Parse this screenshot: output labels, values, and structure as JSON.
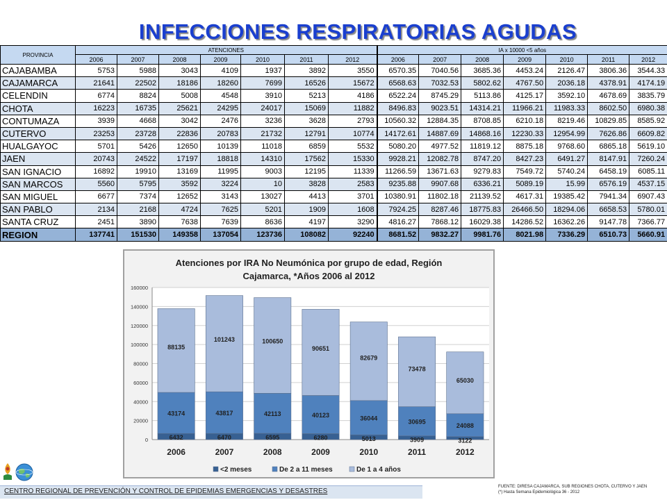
{
  "title": "INFECCIONES RESPIRATORIAS AGUDAS",
  "table": {
    "provincia_header": "PROVINCIA",
    "atenciones_header": "ATENCIONES",
    "ia_header": "IA x 10000 <5 años",
    "years": [
      "2006",
      "2007",
      "2008",
      "2009",
      "2010",
      "2011",
      "2012"
    ],
    "rows": [
      {
        "name": "CAJABAMBA",
        "aten": [
          "5753",
          "5988",
          "3043",
          "4109",
          "1937",
          "3892",
          "3550"
        ],
        "ia": [
          "6570.35",
          "7040.56",
          "3685.36",
          "4453.24",
          "2126.47",
          "3806.36",
          "3544.33"
        ]
      },
      {
        "name": "CAJAMARCA",
        "aten": [
          "21641",
          "22502",
          "18186",
          "18260",
          "7699",
          "16526",
          "15672"
        ],
        "ia": [
          "6568.63",
          "7032.53",
          "5802.62",
          "4767.50",
          "2036.18",
          "4378.91",
          "4174.19"
        ]
      },
      {
        "name": "CELENDIN",
        "aten": [
          "6774",
          "8824",
          "5008",
          "4548",
          "3910",
          "5213",
          "4186"
        ],
        "ia": [
          "6522.24",
          "8745.29",
          "5113.86",
          "4125.17",
          "3592.10",
          "4678.69",
          "3835.79"
        ]
      },
      {
        "name": "CHOTA",
        "aten": [
          "16223",
          "16735",
          "25621",
          "24295",
          "24017",
          "15069",
          "11882"
        ],
        "ia": [
          "8496.83",
          "9023.51",
          "14314.21",
          "11966.21",
          "11983.33",
          "8602.50",
          "6980.38"
        ]
      },
      {
        "name": "CONTUMAZA",
        "aten": [
          "3939",
          "4668",
          "3042",
          "2476",
          "3236",
          "3628",
          "2793"
        ],
        "ia": [
          "10560.32",
          "12884.35",
          "8708.85",
          "6210.18",
          "8219.46",
          "10829.85",
          "8585.92"
        ]
      },
      {
        "name": "CUTERVO",
        "aten": [
          "23253",
          "23728",
          "22836",
          "20783",
          "21732",
          "12791",
          "10774"
        ],
        "ia": [
          "14172.61",
          "14887.69",
          "14868.16",
          "12230.33",
          "12954.99",
          "7626.86",
          "6609.82"
        ]
      },
      {
        "name": "HUALGAYOC",
        "aten": [
          "5701",
          "5426",
          "12650",
          "10139",
          "11018",
          "6859",
          "5532"
        ],
        "ia": [
          "5080.20",
          "4977.52",
          "11819.12",
          "8875.18",
          "9768.60",
          "6865.18",
          "5619.10"
        ]
      },
      {
        "name": "JAEN",
        "aten": [
          "20743",
          "24522",
          "17197",
          "18818",
          "14310",
          "17562",
          "15330"
        ],
        "ia": [
          "9928.21",
          "12082.78",
          "8747.20",
          "8427.23",
          "6491.27",
          "8147.91",
          "7260.24"
        ]
      },
      {
        "name": "SAN IGNACIO",
        "aten": [
          "16892",
          "19910",
          "13169",
          "11995",
          "9003",
          "12195",
          "11339"
        ],
        "ia": [
          "11266.59",
          "13671.63",
          "9279.83",
          "7549.72",
          "5740.24",
          "6458.19",
          "6085.11"
        ]
      },
      {
        "name": "SAN MARCOS",
        "aten": [
          "5560",
          "5795",
          "3592",
          "3224",
          "10",
          "3828",
          "2583"
        ],
        "ia": [
          "9235.88",
          "9907.68",
          "6336.21",
          "5089.19",
          "15.99",
          "6576.19",
          "4537.15"
        ]
      },
      {
        "name": "SAN MIGUEL",
        "aten": [
          "6677",
          "7374",
          "12652",
          "3143",
          "13027",
          "4413",
          "3701"
        ],
        "ia": [
          "10380.91",
          "11802.18",
          "21139.52",
          "4617.31",
          "19385.42",
          "7941.34",
          "6907.43"
        ]
      },
      {
        "name": "SAN PABLO",
        "aten": [
          "2134",
          "2168",
          "4724",
          "7625",
          "5201",
          "1909",
          "1608"
        ],
        "ia": [
          "7924.25",
          "8287.46",
          "18775.83",
          "26466.50",
          "18294.06",
          "6658.53",
          "5780.01"
        ]
      },
      {
        "name": "SANTA CRUZ",
        "aten": [
          "2451",
          "3890",
          "7638",
          "7639",
          "8636",
          "4197",
          "3290"
        ],
        "ia": [
          "4816.27",
          "7868.12",
          "16029.38",
          "14286.52",
          "16362.26",
          "9147.78",
          "7366.77"
        ]
      }
    ],
    "total": {
      "name": "REGION",
      "aten": [
        "137741",
        "151530",
        "149358",
        "137054",
        "123736",
        "108082",
        "92240"
      ],
      "ia": [
        "8681.52",
        "9832.27",
        "9981.76",
        "8021.98",
        "7336.29",
        "6510.73",
        "5660.91"
      ]
    }
  },
  "chart_data": {
    "type": "bar",
    "stacked": true,
    "title": "Atenciones por IRA No Neumónica por grupo de edad, Región Cajamarca, *Años 2006 al 2012",
    "title_lines": [
      "Atenciones por IRA No Neumónica por grupo de edad, Región",
      "Cajamarca, *Años 2006 al 2012"
    ],
    "categories": [
      "2006",
      "2007",
      "2008",
      "2009",
      "2010",
      "2011",
      "2012"
    ],
    "series": [
      {
        "name": "<2 meses",
        "values": [
          6432,
          6470,
          6595,
          6280,
          5013,
          3909,
          3122
        ],
        "color": "#376092"
      },
      {
        "name": "De 2 a 11 meses",
        "values": [
          43174,
          43817,
          42113,
          40123,
          36044,
          30695,
          24088
        ],
        "color": "#4f81bd"
      },
      {
        "name": "De 1 a 4 años",
        "values": [
          88135,
          101243,
          100650,
          90651,
          82679,
          73478,
          65030
        ],
        "color": "#a9bcdc"
      }
    ],
    "ylim": [
      0,
      160000
    ],
    "yticks": [
      "0",
      "20000",
      "40000",
      "60000",
      "80000",
      "100000",
      "120000",
      "140000",
      "160000"
    ],
    "ytick_values": [
      0,
      20000,
      40000,
      60000,
      80000,
      100000,
      120000,
      140000,
      160000
    ],
    "grid": true,
    "legend": "bottom"
  },
  "footer": "CENTRO REGIONAL DE PREVENCIÓN Y CONTROL DE EPIDEMIAS EMERGENCIAS Y DESASTRES",
  "source_line1": "FUENTE: DIRESA CAJAMARCA, SUB REGIONES CHOTA, CUTERVO Y JAEN",
  "source_line2": "(*) Hasta Semana Epidemiológica 36 - 2012"
}
